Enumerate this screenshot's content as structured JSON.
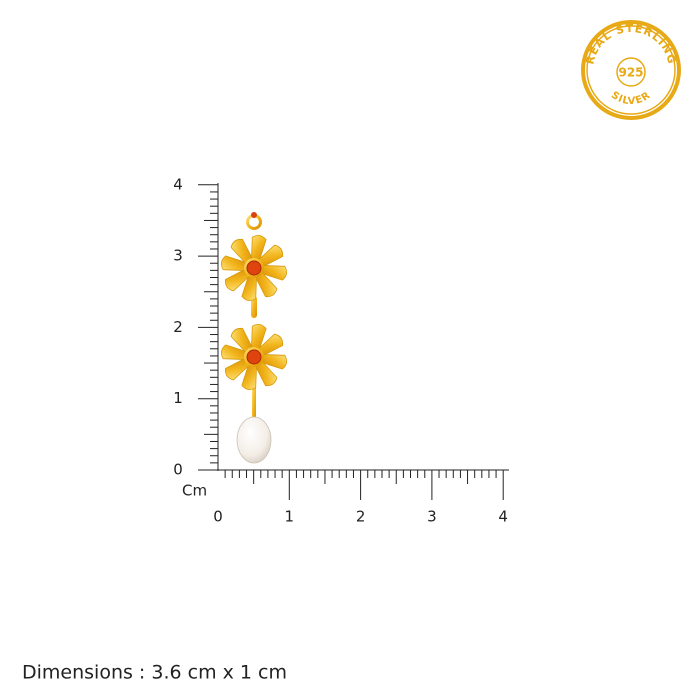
{
  "badge": {
    "top": "REAL STERLING",
    "center": "925",
    "bottom": "SILVER"
  },
  "ruler": {
    "unit": "Cm",
    "y_labels": [
      "0",
      "1",
      "2",
      "3",
      "4"
    ],
    "x_labels": [
      "0",
      "1",
      "2",
      "3",
      "4"
    ]
  },
  "dimensions": "Dimensions : 3.6 cm x 1 cm"
}
